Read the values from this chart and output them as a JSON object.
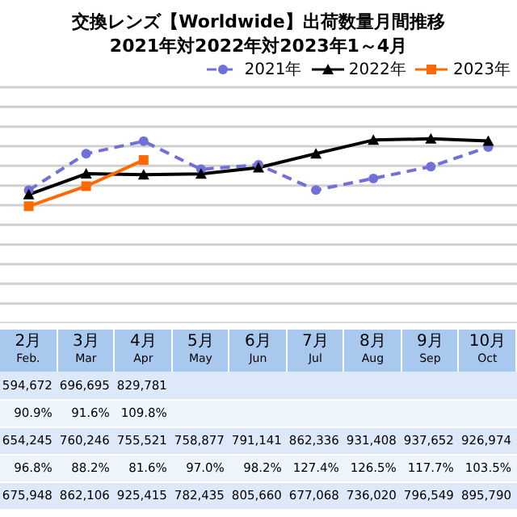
{
  "chart_data": {
    "type": "line",
    "title": "交換レンズ【Worldwide】出荷数量月間推移",
    "subtitle": "2021年対2022年対2023年1～4月",
    "categories": [
      "2月 Feb.",
      "3月 Mar",
      "4月 Apr",
      "5月 May",
      "6月 Jun",
      "7月 Jul",
      "8月 Aug",
      "9月 Sep",
      "10月 Oct"
    ],
    "series": [
      {
        "name": "2021年",
        "color": "#7070d8",
        "marker": "circle",
        "line_style": "dashed",
        "values": [
          675948,
          862106,
          925415,
          782435,
          805660,
          677068,
          736020,
          796549,
          895790
        ],
        "value_labels": [
          "675,948",
          "862,106",
          "925,415",
          "782,435",
          "805,660",
          "677,068",
          "736,020",
          "796,549",
          "895,790"
        ]
      },
      {
        "name": "2022年",
        "color": "#000000",
        "marker": "triangle",
        "line_style": "solid",
        "values": [
          654245,
          760246,
          755521,
          758877,
          791141,
          862336,
          931408,
          937652,
          926974
        ],
        "value_labels": [
          "654,245",
          "760,246",
          "755,521",
          "758,877",
          "791,141",
          "862,336",
          "931,408",
          "937,652",
          "926,974"
        ]
      },
      {
        "name": "2023年",
        "color": "#ff6a00",
        "marker": "square",
        "line_style": "solid",
        "values": [
          594672,
          696695,
          829781,
          null,
          null,
          null,
          null,
          null,
          null
        ],
        "value_labels": [
          "594,672",
          "696,695",
          "829,781",
          null,
          null,
          null,
          null,
          null,
          null
        ]
      }
    ],
    "yticks": [
      {
        "value": 0,
        "label": null
      },
      {
        "value": 100000,
        "label": null
      },
      {
        "value": 200000,
        "label": null
      },
      {
        "value": 300000,
        "label": null
      },
      {
        "value": 400000,
        "label": null
      },
      {
        "value": 500000,
        "label": null
      },
      {
        "value": 600000,
        "label": null
      },
      {
        "value": 700000,
        "label": null
      },
      {
        "value": 800000,
        "label": null
      },
      {
        "value": 900000,
        "label": null
      },
      {
        "value": 1000000,
        "label": null
      },
      {
        "value": 1100000,
        "label": null
      },
      {
        "value": 1200000,
        "label": null
      }
    ],
    "grid": "y",
    "tick_labels": false,
    "legend": "top right",
    "annotations": [
      "90.9%",
      "91.6%",
      "109.8%",
      "96.8%",
      "88.2%",
      "81.6%",
      "97.0%",
      "98.2%",
      "127.4%",
      "126.5%",
      "117.7%",
      "103.5%"
    ]
  }
}
